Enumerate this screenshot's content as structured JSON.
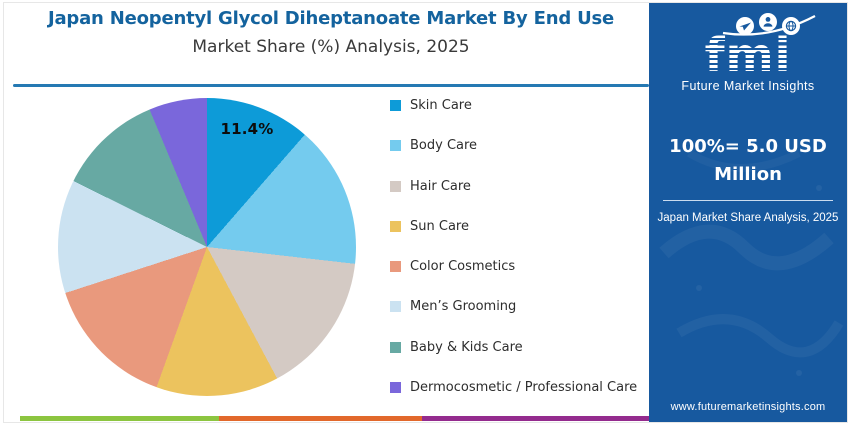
{
  "header": {
    "title": "Japan Neopentyl Glycol Diheptanoate Market By End Use",
    "subtitle": "Market Share (%) Analysis, 2025"
  },
  "chart_data": {
    "type": "pie",
    "title": "Japan Neopentyl Glycol Diheptanoate Market By End Use",
    "subtitle": "Market Share (%) Analysis, 2025",
    "categories": [
      "Skin Care",
      "Body Care",
      "Hair Care",
      "Sun Care",
      "Color Cosmetics",
      "Men’s Grooming",
      "Baby & Kids Care",
      "Dermocosmetic / Professional Care"
    ],
    "values": [
      11.4,
      15.4,
      15.4,
      13.3,
      14.5,
      12.3,
      11.4,
      6.3
    ],
    "unit": "%",
    "colors": [
      "#0D9BD8",
      "#74CBEE",
      "#D4CAC4",
      "#ECC35E",
      "#E9997D",
      "#CBE2F1",
      "#67A9A3",
      "#7A67DB"
    ],
    "start_angle_deg": 0,
    "direction": "clockwise",
    "legend_position": "right",
    "data_labels": [
      {
        "category": "Skin Care",
        "label": "11.4%"
      }
    ]
  },
  "sidebar": {
    "logo_text": "fmi",
    "logo_tagline": "Future Market Insights",
    "headline": "100%= 5.0 USD Million",
    "caption": "Japan Market Share Analysis, 2025",
    "website": "www.futuremarketinsights.com",
    "background_color": "#17599F"
  },
  "footer_strip": {
    "colors": [
      "#8CC540",
      "#E2682B",
      "#942B8E"
    ]
  }
}
